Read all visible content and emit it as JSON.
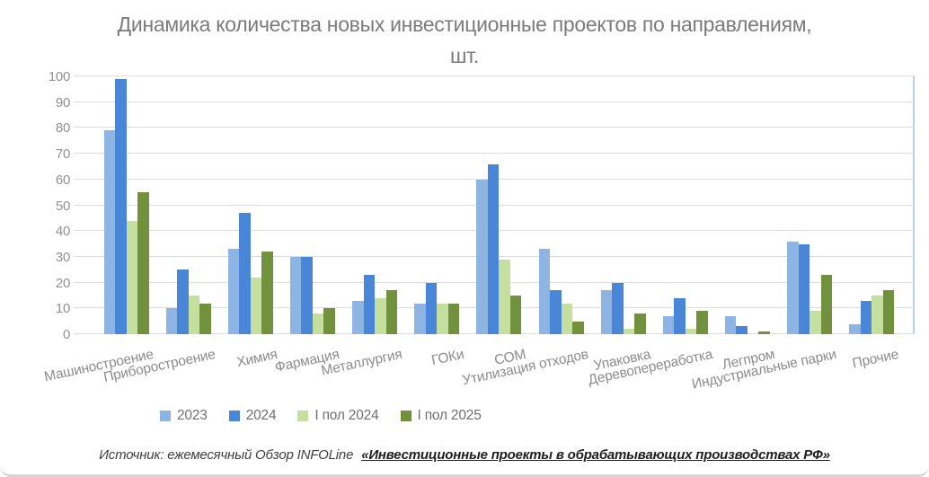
{
  "title": "Динамика количества новых инвестиционные проектов по направлениям, шт.",
  "chart_data": {
    "type": "bar",
    "title": "Динамика количества новых инвестиционные проектов по направлениям, шт.",
    "categories": [
      "Машиностроение",
      "Приборостроение",
      "Химия",
      "Фармация",
      "Металлургия",
      "ГОКи",
      "СОМ",
      "Утилизация отходов",
      "Упаковка",
      "Деревопереработка",
      "Легпром",
      "Индустриальные парки",
      "Прочие"
    ],
    "series": [
      {
        "name": "2023",
        "color": "#8db4e2",
        "values": [
          79,
          10,
          33,
          30,
          13,
          12,
          60,
          33,
          17,
          7,
          7,
          36,
          4
        ]
      },
      {
        "name": "2024",
        "color": "#4a86d8",
        "values": [
          99,
          25,
          47,
          30,
          23,
          20,
          66,
          17,
          20,
          14,
          3,
          35,
          13
        ]
      },
      {
        "name": "I пол 2024",
        "color": "#c5dfa0",
        "values": [
          44,
          15,
          22,
          8,
          14,
          12,
          29,
          12,
          2,
          2,
          0,
          9,
          15
        ]
      },
      {
        "name": "I пол 2025",
        "color": "#71913c",
        "values": [
          55,
          12,
          32,
          10,
          17,
          12,
          15,
          5,
          8,
          9,
          1,
          23,
          17
        ]
      }
    ],
    "xlabel": "",
    "ylabel": "",
    "ylim": [
      0,
      100
    ],
    "ytick_step": 10,
    "grid": true,
    "legend_position": "bottom"
  },
  "colors": {
    "title_text": "#7b7b7b",
    "axis_text": "#919191",
    "gridline": "#dcdcdc",
    "plot_right_line": "#b9cfec"
  },
  "source": {
    "prefix": "Источник: ежемесячный Обзор INFOLine",
    "link": "«Инвестиционные проекты в обрабатывающих производствах РФ»"
  }
}
